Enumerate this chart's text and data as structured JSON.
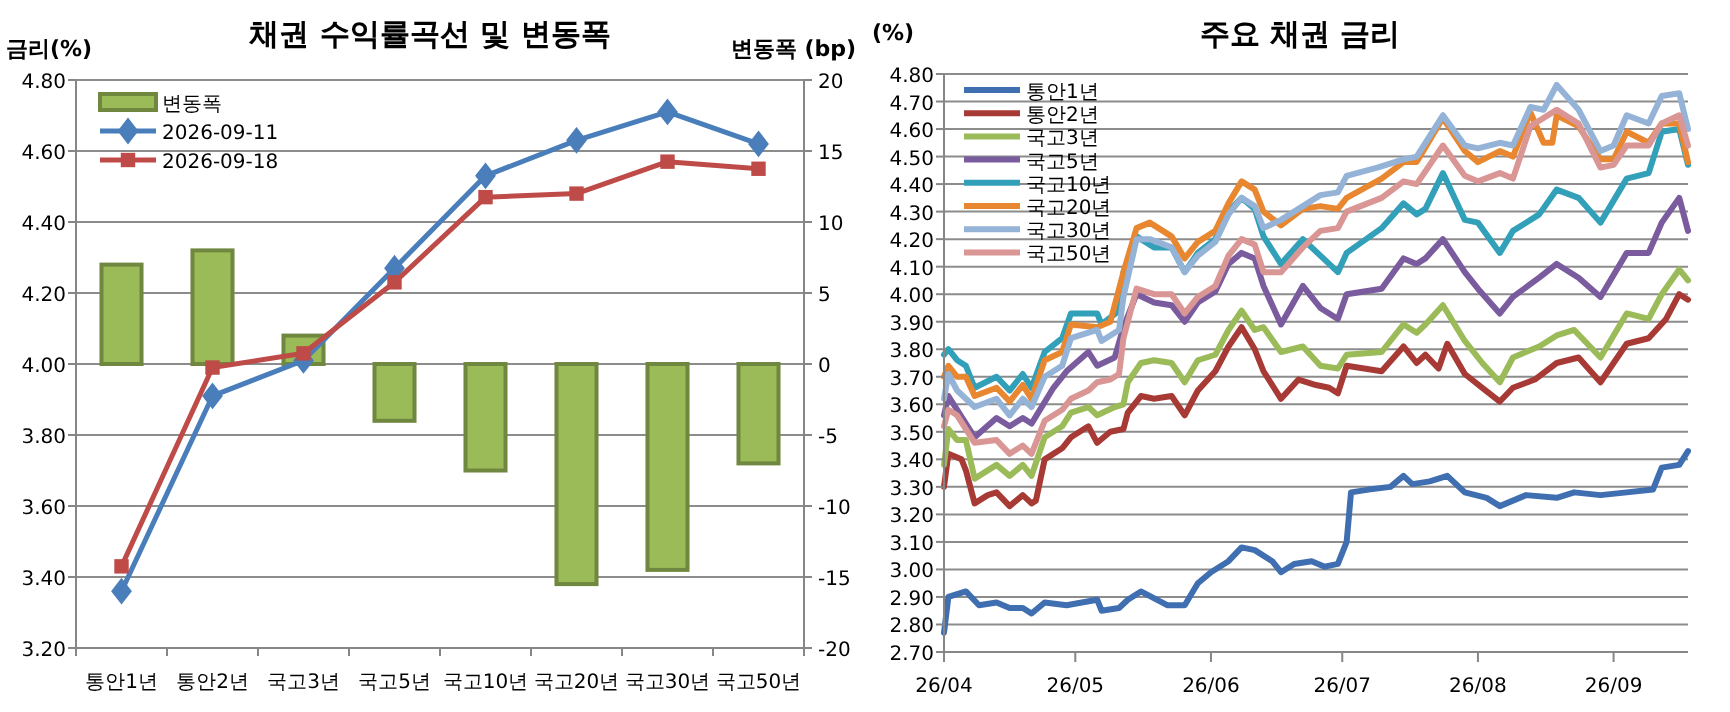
{
  "chart_data": [
    {
      "type": "bar",
      "title": "채권 수익률곡선 및 변동폭",
      "ylabel": "금리(%)",
      "y2label": "변동폭 (bp)",
      "categories": [
        "통안1년",
        "통안2년",
        "국고3년",
        "국고5년",
        "국고10년",
        "국고20년",
        "국고30년",
        "국고50년"
      ],
      "series": [
        {
          "name": "변동폭",
          "axis": "y2",
          "color": "#9bbb59",
          "values": [
            7,
            8,
            2,
            -4,
            -7.5,
            -15.5,
            -14.5,
            -7
          ]
        },
        {
          "name": "2026-09-11",
          "type": "line",
          "color": "#4a7ebb",
          "marker": "diamond",
          "values": [
            3.36,
            3.91,
            4.01,
            4.27,
            4.53,
            4.63,
            4.71,
            4.62
          ]
        },
        {
          "name": "2026-09-18",
          "type": "line",
          "color": "#be4b48",
          "marker": "square",
          "values": [
            3.43,
            3.99,
            4.03,
            4.23,
            4.47,
            4.48,
            4.57,
            4.55
          ]
        }
      ],
      "ylim": [
        3.2,
        4.8
      ],
      "yticks": [
        {
          "value": 3.2,
          "label": "3.20"
        },
        {
          "value": 3.4,
          "label": "3.40"
        },
        {
          "value": 3.6,
          "label": "3.60"
        },
        {
          "value": 3.8,
          "label": "3.80"
        },
        {
          "value": 4.0,
          "label": "4.00"
        },
        {
          "value": 4.2,
          "label": "4.20"
        },
        {
          "value": 4.4,
          "label": "4.40"
        },
        {
          "value": 4.6,
          "label": "4.60"
        },
        {
          "value": 4.8,
          "label": "4.80"
        }
      ],
      "y2lim": [
        -20,
        20
      ],
      "y2ticks": [
        -20,
        -15,
        -10,
        -5,
        0,
        5,
        10,
        15,
        20
      ],
      "grid": "y",
      "legend": "top left"
    },
    {
      "type": "line",
      "title": "주요 채권 금리",
      "ylabel": "(%)",
      "xlim": [
        "2026-04-01",
        "2026-09-18"
      ],
      "xticks": [
        {
          "value": "2026-04-01",
          "label": "26/04"
        },
        {
          "value": "2026-05-01",
          "label": "26/05"
        },
        {
          "value": "2026-06-01",
          "label": "26/06"
        },
        {
          "value": "2026-07-01",
          "label": "26/07"
        },
        {
          "value": "2026-08-01",
          "label": "26/08"
        },
        {
          "value": "2026-09-01",
          "label": "26/09"
        }
      ],
      "ylim": [
        2.7,
        4.8
      ],
      "yticks": [
        {
          "value": 2.7,
          "label": "2.70"
        },
        {
          "value": 2.8,
          "label": "2.80"
        },
        {
          "value": 2.9,
          "label": "2.90"
        },
        {
          "value": 3.0,
          "label": "3.00"
        },
        {
          "value": 3.1,
          "label": "3.10"
        },
        {
          "value": 3.2,
          "label": "3.20"
        },
        {
          "value": 3.3,
          "label": "3.30"
        },
        {
          "value": 3.4,
          "label": "3.40"
        },
        {
          "value": 3.5,
          "label": "3.50"
        },
        {
          "value": 3.6,
          "label": "3.60"
        },
        {
          "value": 3.7,
          "label": "3.70"
        },
        {
          "value": 3.8,
          "label": "3.80"
        },
        {
          "value": 3.9,
          "label": "3.90"
        },
        {
          "value": 4.0,
          "label": "4.00"
        },
        {
          "value": 4.1,
          "label": "4.10"
        },
        {
          "value": 4.2,
          "label": "4.20"
        },
        {
          "value": 4.3,
          "label": "4.30"
        },
        {
          "value": 4.4,
          "label": "4.40"
        },
        {
          "value": 4.5,
          "label": "4.50"
        },
        {
          "value": 4.6,
          "label": "4.60"
        },
        {
          "value": 4.7,
          "label": "4.70"
        },
        {
          "value": 4.8,
          "label": "4.80"
        }
      ],
      "grid": "y",
      "legend": "top left",
      "series": [
        {
          "name": "통안1년",
          "color": "#3f6fb0",
          "x": [
            "2026-04-01",
            "2026-04-02",
            "2026-04-06",
            "2026-04-09",
            "2026-04-13",
            "2026-04-16",
            "2026-04-19",
            "2026-04-21",
            "2026-04-24",
            "2026-04-29",
            "2026-05-06",
            "2026-05-07",
            "2026-05-11",
            "2026-05-13",
            "2026-05-16",
            "2026-05-22",
            "2026-05-26",
            "2026-05-29",
            "2026-06-01",
            "2026-06-05",
            "2026-06-08",
            "2026-06-11",
            "2026-06-15",
            "2026-06-17",
            "2026-06-20",
            "2026-06-24",
            "2026-06-27",
            "2026-06-30",
            "2026-07-02",
            "2026-07-03",
            "2026-07-07",
            "2026-07-12",
            "2026-07-15",
            "2026-07-17",
            "2026-07-21",
            "2026-07-25",
            "2026-07-29",
            "2026-08-03",
            "2026-08-06",
            "2026-08-12",
            "2026-08-19",
            "2026-08-23",
            "2026-08-29",
            "2026-09-04",
            "2026-09-10",
            "2026-09-12",
            "2026-09-16",
            "2026-09-18"
          ],
          "values": [
            2.77,
            2.9,
            2.92,
            2.87,
            2.88,
            2.86,
            2.86,
            2.84,
            2.88,
            2.87,
            2.89,
            2.85,
            2.86,
            2.89,
            2.92,
            2.87,
            2.87,
            2.95,
            2.99,
            3.03,
            3.08,
            3.07,
            3.03,
            2.99,
            3.02,
            3.03,
            3.01,
            3.02,
            3.1,
            3.28,
            3.29,
            3.3,
            3.34,
            3.31,
            3.32,
            3.34,
            3.28,
            3.26,
            3.23,
            3.27,
            3.26,
            3.28,
            3.27,
            3.28,
            3.29,
            3.37,
            3.38,
            3.43
          ]
        },
        {
          "name": "통안2년",
          "color": "#a83a36",
          "x": [
            "2026-04-01",
            "2026-04-02",
            "2026-04-05",
            "2026-04-06",
            "2026-04-08",
            "2026-04-11",
            "2026-04-13",
            "2026-04-16",
            "2026-04-19",
            "2026-04-21",
            "2026-04-22",
            "2026-04-24",
            "2026-04-28",
            "2026-04-30",
            "2026-05-04",
            "2026-05-06",
            "2026-05-09",
            "2026-05-12",
            "2026-05-13",
            "2026-05-16",
            "2026-05-19",
            "2026-05-23",
            "2026-05-26",
            "2026-05-29",
            "2026-06-02",
            "2026-06-05",
            "2026-06-08",
            "2026-06-11",
            "2026-06-13",
            "2026-06-17",
            "2026-06-21",
            "2026-06-25",
            "2026-06-28",
            "2026-06-30",
            "2026-07-02",
            "2026-07-10",
            "2026-07-15",
            "2026-07-18",
            "2026-07-20",
            "2026-07-23",
            "2026-07-25",
            "2026-07-29",
            "2026-08-02",
            "2026-08-06",
            "2026-08-09",
            "2026-08-14",
            "2026-08-19",
            "2026-08-24",
            "2026-08-29",
            "2026-09-04",
            "2026-09-09",
            "2026-09-13",
            "2026-09-16",
            "2026-09-18"
          ],
          "values": [
            3.3,
            3.42,
            3.4,
            3.36,
            3.24,
            3.27,
            3.28,
            3.23,
            3.27,
            3.24,
            3.25,
            3.4,
            3.44,
            3.48,
            3.52,
            3.46,
            3.5,
            3.51,
            3.57,
            3.63,
            3.62,
            3.63,
            3.56,
            3.65,
            3.72,
            3.81,
            3.88,
            3.8,
            3.72,
            3.62,
            3.69,
            3.67,
            3.66,
            3.64,
            3.74,
            3.72,
            3.81,
            3.75,
            3.78,
            3.73,
            3.82,
            3.71,
            3.66,
            3.61,
            3.66,
            3.69,
            3.75,
            3.77,
            3.68,
            3.82,
            3.84,
            3.91,
            4.0,
            3.98
          ]
        },
        {
          "name": "국고3년",
          "color": "#9bbb59",
          "x": [
            "2026-04-01",
            "2026-04-02",
            "2026-04-04",
            "2026-04-06",
            "2026-04-08",
            "2026-04-11",
            "2026-04-13",
            "2026-04-16",
            "2026-04-19",
            "2026-04-21",
            "2026-04-24",
            "2026-04-28",
            "2026-04-30",
            "2026-05-04",
            "2026-05-06",
            "2026-05-10",
            "2026-05-12",
            "2026-05-13",
            "2026-05-16",
            "2026-05-19",
            "2026-05-23",
            "2026-05-26",
            "2026-05-29",
            "2026-06-02",
            "2026-06-05",
            "2026-06-08",
            "2026-06-11",
            "2026-06-13",
            "2026-06-17",
            "2026-06-22",
            "2026-06-26",
            "2026-06-30",
            "2026-07-02",
            "2026-07-10",
            "2026-07-15",
            "2026-07-18",
            "2026-07-20",
            "2026-07-24",
            "2026-07-29",
            "2026-08-02",
            "2026-08-06",
            "2026-08-09",
            "2026-08-15",
            "2026-08-19",
            "2026-08-23",
            "2026-08-29",
            "2026-09-04",
            "2026-09-09",
            "2026-09-12",
            "2026-09-16",
            "2026-09-18"
          ],
          "values": [
            3.38,
            3.51,
            3.47,
            3.47,
            3.33,
            3.36,
            3.38,
            3.34,
            3.38,
            3.34,
            3.48,
            3.52,
            3.57,
            3.59,
            3.56,
            3.59,
            3.6,
            3.68,
            3.75,
            3.76,
            3.75,
            3.68,
            3.76,
            3.78,
            3.87,
            3.94,
            3.87,
            3.88,
            3.79,
            3.81,
            3.74,
            3.73,
            3.78,
            3.79,
            3.89,
            3.86,
            3.89,
            3.96,
            3.83,
            3.75,
            3.68,
            3.77,
            3.81,
            3.85,
            3.87,
            3.77,
            3.93,
            3.91,
            4.0,
            4.09,
            4.05
          ]
        },
        {
          "name": "국고5년",
          "color": "#7a5c9e",
          "x": [
            "2026-04-01",
            "2026-04-02",
            "2026-04-08",
            "2026-04-13",
            "2026-04-16",
            "2026-04-19",
            "2026-04-21",
            "2026-04-26",
            "2026-04-29",
            "2026-05-04",
            "2026-05-06",
            "2026-05-10",
            "2026-05-12",
            "2026-05-15",
            "2026-05-19",
            "2026-05-23",
            "2026-05-26",
            "2026-05-29",
            "2026-06-02",
            "2026-06-05",
            "2026-06-08",
            "2026-06-11",
            "2026-06-13",
            "2026-06-17",
            "2026-06-22",
            "2026-06-26",
            "2026-06-30",
            "2026-07-02",
            "2026-07-10",
            "2026-07-15",
            "2026-07-18",
            "2026-07-20",
            "2026-07-24",
            "2026-07-29",
            "2026-08-01",
            "2026-08-06",
            "2026-08-09",
            "2026-08-15",
            "2026-08-19",
            "2026-08-24",
            "2026-08-29",
            "2026-09-04",
            "2026-09-09",
            "2026-09-12",
            "2026-09-16",
            "2026-09-18"
          ],
          "values": [
            3.56,
            3.63,
            3.48,
            3.55,
            3.52,
            3.55,
            3.53,
            3.66,
            3.72,
            3.79,
            3.74,
            3.77,
            3.88,
            4.0,
            3.97,
            3.96,
            3.9,
            3.97,
            4.01,
            4.11,
            4.15,
            4.13,
            4.03,
            3.89,
            4.03,
            3.95,
            3.91,
            4.0,
            4.02,
            4.13,
            4.11,
            4.13,
            4.2,
            4.08,
            4.02,
            3.93,
            3.99,
            4.06,
            4.11,
            4.06,
            3.99,
            4.15,
            4.15,
            4.26,
            4.35,
            4.23
          ]
        },
        {
          "name": "국고10년",
          "color": "#31a0b8",
          "x": [
            "2026-04-01",
            "2026-04-02",
            "2026-04-04",
            "2026-04-06",
            "2026-04-08",
            "2026-04-13",
            "2026-04-16",
            "2026-04-19",
            "2026-04-21",
            "2026-04-24",
            "2026-04-28",
            "2026-04-30",
            "2026-05-06",
            "2026-05-07",
            "2026-05-11",
            "2026-05-12",
            "2026-05-15",
            "2026-05-19",
            "2026-05-23",
            "2026-05-26",
            "2026-05-29",
            "2026-06-02",
            "2026-06-05",
            "2026-06-08",
            "2026-06-11",
            "2026-06-13",
            "2026-06-17",
            "2026-06-22",
            "2026-06-26",
            "2026-06-30",
            "2026-07-02",
            "2026-07-10",
            "2026-07-15",
            "2026-07-18",
            "2026-07-20",
            "2026-07-24",
            "2026-07-29",
            "2026-08-01",
            "2026-08-06",
            "2026-08-09",
            "2026-08-15",
            "2026-08-19",
            "2026-08-24",
            "2026-08-29",
            "2026-09-04",
            "2026-09-09",
            "2026-09-12",
            "2026-09-16",
            "2026-09-18"
          ],
          "values": [
            3.78,
            3.8,
            3.76,
            3.74,
            3.66,
            3.7,
            3.65,
            3.71,
            3.66,
            3.79,
            3.84,
            3.93,
            3.93,
            3.89,
            3.94,
            4.08,
            4.21,
            4.17,
            4.17,
            4.08,
            4.15,
            4.2,
            4.3,
            4.35,
            4.31,
            4.21,
            4.11,
            4.2,
            4.14,
            4.08,
            4.15,
            4.24,
            4.33,
            4.29,
            4.31,
            4.44,
            4.27,
            4.26,
            4.15,
            4.23,
            4.29,
            4.38,
            4.35,
            4.26,
            4.42,
            4.44,
            4.59,
            4.6,
            4.47
          ]
        },
        {
          "name": "국고20년",
          "color": "#e8872f",
          "x": [
            "2026-04-01",
            "2026-04-02",
            "2026-04-04",
            "2026-04-06",
            "2026-04-08",
            "2026-04-13",
            "2026-04-16",
            "2026-04-19",
            "2026-04-21",
            "2026-04-24",
            "2026-04-28",
            "2026-04-30",
            "2026-05-06",
            "2026-05-09",
            "2026-05-12",
            "2026-05-15",
            "2026-05-18",
            "2026-05-23",
            "2026-05-26",
            "2026-05-29",
            "2026-06-02",
            "2026-06-05",
            "2026-06-08",
            "2026-06-11",
            "2026-06-13",
            "2026-06-17",
            "2026-06-22",
            "2026-06-26",
            "2026-06-30",
            "2026-07-02",
            "2026-07-10",
            "2026-07-15",
            "2026-07-18",
            "2026-07-24",
            "2026-07-29",
            "2026-08-01",
            "2026-08-06",
            "2026-08-09",
            "2026-08-13",
            "2026-08-16",
            "2026-08-18",
            "2026-08-19",
            "2026-08-24",
            "2026-08-29",
            "2026-09-01",
            "2026-09-04",
            "2026-09-09",
            "2026-09-12",
            "2026-09-16",
            "2026-09-18"
          ],
          "values": [
            3.7,
            3.74,
            3.7,
            3.7,
            3.63,
            3.66,
            3.61,
            3.67,
            3.62,
            3.76,
            3.79,
            3.89,
            3.88,
            3.9,
            4.08,
            4.24,
            4.26,
            4.21,
            4.13,
            4.19,
            4.23,
            4.33,
            4.41,
            4.38,
            4.3,
            4.25,
            4.31,
            4.32,
            4.31,
            4.35,
            4.42,
            4.48,
            4.48,
            4.64,
            4.52,
            4.48,
            4.52,
            4.5,
            4.66,
            4.55,
            4.55,
            4.65,
            4.61,
            4.49,
            4.49,
            4.59,
            4.55,
            4.62,
            4.62,
            4.48
          ]
        },
        {
          "name": "국고30년",
          "color": "#95b3d7",
          "x": [
            "2026-04-01",
            "2026-04-02",
            "2026-04-04",
            "2026-04-08",
            "2026-04-13",
            "2026-04-16",
            "2026-04-19",
            "2026-04-21",
            "2026-04-24",
            "2026-04-28",
            "2026-04-30",
            "2026-05-06",
            "2026-05-07",
            "2026-05-11",
            "2026-05-12",
            "2026-05-15",
            "2026-05-18",
            "2026-05-23",
            "2026-05-26",
            "2026-05-29",
            "2026-06-02",
            "2026-06-05",
            "2026-06-08",
            "2026-06-11",
            "2026-06-13",
            "2026-06-17",
            "2026-06-22",
            "2026-06-26",
            "2026-06-30",
            "2026-07-02",
            "2026-07-09",
            "2026-07-15",
            "2026-07-18",
            "2026-07-24",
            "2026-07-29",
            "2026-08-01",
            "2026-08-06",
            "2026-08-09",
            "2026-08-13",
            "2026-08-16",
            "2026-08-19",
            "2026-08-24",
            "2026-08-29",
            "2026-09-01",
            "2026-09-04",
            "2026-09-09",
            "2026-09-12",
            "2026-09-16",
            "2026-09-18"
          ],
          "values": [
            3.62,
            3.71,
            3.65,
            3.59,
            3.62,
            3.56,
            3.62,
            3.59,
            3.7,
            3.74,
            3.84,
            3.87,
            3.83,
            3.87,
            3.99,
            4.2,
            4.2,
            4.17,
            4.08,
            4.14,
            4.19,
            4.29,
            4.35,
            4.32,
            4.24,
            4.27,
            4.32,
            4.36,
            4.37,
            4.43,
            4.46,
            4.49,
            4.5,
            4.65,
            4.54,
            4.53,
            4.55,
            4.54,
            4.68,
            4.67,
            4.76,
            4.67,
            4.52,
            4.54,
            4.65,
            4.62,
            4.72,
            4.73,
            4.6
          ]
        },
        {
          "name": "국고50년",
          "color": "#d99694",
          "x": [
            "2026-04-01",
            "2026-04-02",
            "2026-04-04",
            "2026-04-08",
            "2026-04-13",
            "2026-04-16",
            "2026-04-19",
            "2026-04-21",
            "2026-04-24",
            "2026-04-28",
            "2026-04-30",
            "2026-05-04",
            "2026-05-06",
            "2026-05-09",
            "2026-05-11",
            "2026-05-12",
            "2026-05-15",
            "2026-05-19",
            "2026-05-23",
            "2026-05-26",
            "2026-05-29",
            "2026-06-02",
            "2026-06-05",
            "2026-06-08",
            "2026-06-11",
            "2026-06-13",
            "2026-06-17",
            "2026-06-22",
            "2026-06-26",
            "2026-06-30",
            "2026-07-02",
            "2026-07-10",
            "2026-07-15",
            "2026-07-18",
            "2026-07-24",
            "2026-07-29",
            "2026-08-01",
            "2026-08-06",
            "2026-08-09",
            "2026-08-13",
            "2026-08-19",
            "2026-08-24",
            "2026-08-29",
            "2026-09-01",
            "2026-09-04",
            "2026-09-09",
            "2026-09-12",
            "2026-09-16",
            "2026-09-18"
          ],
          "values": [
            3.52,
            3.58,
            3.56,
            3.46,
            3.47,
            3.42,
            3.45,
            3.42,
            3.54,
            3.58,
            3.62,
            3.65,
            3.68,
            3.69,
            3.71,
            3.84,
            4.02,
            4.0,
            4.0,
            3.93,
            3.99,
            4.03,
            4.14,
            4.2,
            4.18,
            4.08,
            4.08,
            4.17,
            4.23,
            4.24,
            4.3,
            4.35,
            4.41,
            4.4,
            4.54,
            4.43,
            4.41,
            4.44,
            4.42,
            4.61,
            4.67,
            4.62,
            4.46,
            4.47,
            4.54,
            4.54,
            4.62,
            4.65,
            4.54
          ]
        }
      ]
    }
  ]
}
